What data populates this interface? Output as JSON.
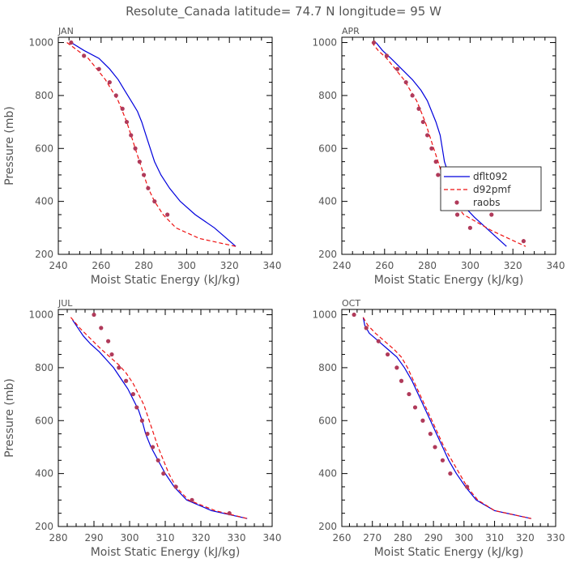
{
  "figure": {
    "title": "Resolute_Canada  latitude= 74.7 N longitude= 95 W"
  },
  "colors": {
    "dflt092": "#0000dd",
    "d92pmf": "#ee1111",
    "raobs": "#b03a5a",
    "axis": "#000000"
  },
  "legend": {
    "items": [
      {
        "label": "dflt092",
        "style": "solid"
      },
      {
        "label": "d92pmf",
        "style": "dashed"
      },
      {
        "label": "raobs",
        "style": "dots"
      }
    ]
  },
  "chart_data": [
    {
      "type": "line",
      "panel": "JAN",
      "title": "JAN",
      "xlabel": "Moist Static Energy (kJ/kg)",
      "ylabel": "Pressure (mb)",
      "xlim": [
        240,
        340
      ],
      "ylim": [
        1020,
        200
      ],
      "xticks": [
        240,
        260,
        280,
        300,
        320,
        340
      ],
      "yticks": [
        200,
        400,
        600,
        800,
        1000
      ],
      "series": [
        {
          "name": "dflt092",
          "style": "solid",
          "x": [
            246,
            252,
            259,
            264,
            268,
            271,
            274,
            277,
            279,
            281,
            283,
            285,
            288,
            292,
            297,
            304,
            313,
            323
          ],
          "y": [
            1000,
            970,
            940,
            900,
            860,
            820,
            780,
            740,
            700,
            650,
            600,
            550,
            500,
            450,
            400,
            350,
            300,
            230
          ]
        },
        {
          "name": "d92pmf",
          "style": "dashed",
          "x": [
            244,
            249,
            254,
            258,
            262,
            265,
            268,
            270,
            272,
            274,
            276,
            278,
            280,
            282,
            285,
            289,
            295,
            306,
            323
          ],
          "y": [
            1000,
            970,
            940,
            900,
            860,
            820,
            780,
            740,
            700,
            650,
            600,
            550,
            500,
            450,
            400,
            350,
            300,
            260,
            230
          ]
        },
        {
          "name": "raobs",
          "style": "dots",
          "x": [
            246,
            252,
            259,
            264,
            267,
            270,
            272,
            274,
            276,
            278,
            280,
            282,
            285,
            291
          ],
          "y": [
            1000,
            950,
            900,
            850,
            800,
            750,
            700,
            650,
            600,
            550,
            500,
            450,
            400,
            350
          ]
        }
      ]
    },
    {
      "type": "line",
      "panel": "APR",
      "title": "APR",
      "xlabel": "Moist Static Energy (kJ/kg)",
      "ylabel": "",
      "xlim": [
        240,
        340
      ],
      "ylim": [
        1020,
        200
      ],
      "xticks": [
        240,
        260,
        280,
        300,
        320,
        340
      ],
      "yticks": [
        200,
        400,
        600,
        800,
        1000
      ],
      "series": [
        {
          "name": "dflt092",
          "style": "solid",
          "x": [
            256,
            259,
            263,
            268,
            273,
            277,
            280,
            282,
            284,
            286,
            287,
            288,
            290,
            292,
            295,
            302,
            317
          ],
          "y": [
            1000,
            970,
            940,
            900,
            860,
            820,
            780,
            740,
            700,
            650,
            600,
            550,
            500,
            450,
            400,
            340,
            230
          ]
        },
        {
          "name": "d92pmf",
          "style": "dashed",
          "x": [
            254,
            257,
            261,
            265,
            269,
            272,
            275,
            277,
            279,
            281,
            283,
            285,
            287,
            289,
            292,
            297,
            310,
            326
          ],
          "y": [
            1000,
            970,
            940,
            900,
            860,
            820,
            780,
            740,
            700,
            650,
            600,
            550,
            500,
            450,
            400,
            350,
            290,
            230
          ]
        },
        {
          "name": "raobs",
          "style": "dots",
          "x": [
            255,
            261,
            266,
            270,
            273,
            276,
            278,
            280,
            282,
            284,
            285,
            287,
            289,
            294,
            300,
            310,
            325
          ],
          "y": [
            1000,
            950,
            900,
            850,
            800,
            750,
            700,
            650,
            600,
            550,
            500,
            450,
            400,
            350,
            300,
            350,
            250
          ]
        }
      ]
    },
    {
      "type": "line",
      "panel": "JUL",
      "title": "JUL",
      "xlabel": "Moist Static Energy (kJ/kg)",
      "ylabel": "Pressure (mb)",
      "xlim": [
        280,
        340
      ],
      "ylim": [
        1020,
        200
      ],
      "xticks": [
        280,
        290,
        300,
        310,
        320,
        330,
        340
      ],
      "yticks": [
        200,
        400,
        600,
        800,
        1000
      ],
      "series": [
        {
          "name": "dflt092",
          "style": "solid",
          "x": [
            284,
            285.5,
            287,
            289,
            291.5,
            293.5,
            295.5,
            297.5,
            299.5,
            301,
            302.5,
            303.5,
            304.5,
            306,
            308,
            310,
            312.5,
            316,
            323,
            333
          ],
          "y": [
            980,
            950,
            920,
            890,
            860,
            830,
            800,
            760,
            720,
            680,
            640,
            600,
            550,
            500,
            450,
            400,
            350,
            300,
            260,
            230
          ]
        },
        {
          "name": "d92pmf",
          "style": "dashed",
          "x": [
            283.5,
            286,
            289,
            292,
            294.5,
            297,
            299,
            301,
            302.5,
            304,
            305,
            306,
            307,
            308,
            309.5,
            311,
            313,
            316.5,
            324,
            333
          ],
          "y": [
            990,
            950,
            910,
            870,
            840,
            810,
            780,
            740,
            700,
            660,
            620,
            580,
            540,
            500,
            450,
            400,
            350,
            300,
            260,
            230
          ]
        },
        {
          "name": "raobs",
          "style": "dots",
          "x": [
            290,
            292,
            294,
            295,
            297,
            299,
            301,
            302,
            303.5,
            305,
            306.5,
            308,
            309.5,
            313,
            317.5,
            328
          ],
          "y": [
            1000,
            950,
            900,
            850,
            800,
            750,
            700,
            650,
            600,
            550,
            500,
            450,
            400,
            350,
            300,
            250
          ]
        }
      ]
    },
    {
      "type": "line",
      "panel": "OCT",
      "title": "OCT",
      "xlabel": "Moist Static Energy (kJ/kg)",
      "ylabel": "",
      "xlim": [
        260,
        330
      ],
      "ylim": [
        1020,
        200
      ],
      "xticks": [
        260,
        270,
        280,
        290,
        300,
        310,
        320,
        330
      ],
      "yticks": [
        200,
        400,
        600,
        800,
        1000
      ],
      "series": [
        {
          "name": "dflt092",
          "style": "solid",
          "x": [
            267,
            267.5,
            269,
            272,
            275,
            278,
            280.5,
            283,
            285,
            287,
            289,
            291,
            293,
            295,
            297.5,
            300.5,
            304,
            310,
            322
          ],
          "y": [
            990,
            960,
            930,
            900,
            870,
            840,
            800,
            750,
            700,
            650,
            600,
            550,
            500,
            450,
            400,
            350,
            300,
            260,
            230
          ]
        },
        {
          "name": "d92pmf",
          "style": "dashed",
          "x": [
            267,
            268.5,
            271,
            274,
            277,
            279.5,
            281.5,
            283.5,
            285.5,
            287.5,
            289.5,
            291.5,
            293.5,
            296,
            298.5,
            301,
            304.5,
            310,
            322
          ],
          "y": [
            990,
            960,
            930,
            900,
            870,
            840,
            800,
            750,
            700,
            650,
            600,
            550,
            500,
            450,
            400,
            350,
            300,
            260,
            230
          ]
        },
        {
          "name": "raobs",
          "style": "dots",
          "x": [
            264,
            268,
            272,
            275,
            278,
            279.5,
            282,
            284,
            286.5,
            289,
            290.5,
            293,
            295.5,
            301
          ],
          "y": [
            1000,
            950,
            900,
            850,
            800,
            750,
            700,
            650,
            600,
            550,
            500,
            450,
            400,
            350
          ]
        }
      ]
    }
  ]
}
